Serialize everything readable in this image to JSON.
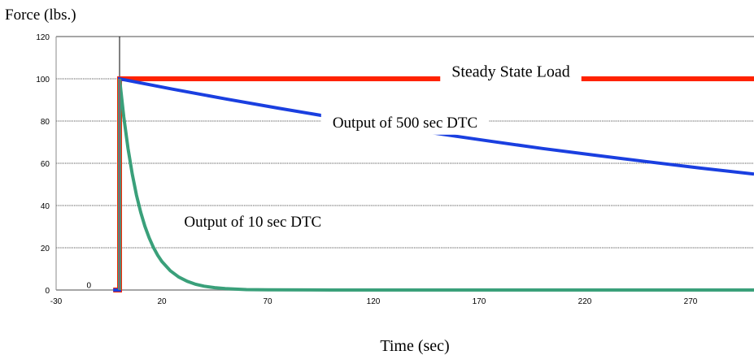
{
  "chart_data": {
    "type": "line",
    "ylabel": "Force (lbs.)",
    "xlabel": "Time (sec)",
    "xlim": [
      -30,
      300
    ],
    "ylim": [
      0,
      120
    ],
    "xticks": [
      -30,
      20,
      70,
      120,
      170,
      220,
      270
    ],
    "yticks": [
      0,
      20,
      40,
      60,
      80,
      100,
      120
    ],
    "grid": true,
    "series": [
      {
        "name": "Steady State Load",
        "color": "#ff2200",
        "x": [
          -3,
          0,
          0,
          300
        ],
        "y": [
          0,
          0,
          100,
          100
        ]
      },
      {
        "name": "Output of 500 sec DTC",
        "color": "#1a3fe0",
        "x": [
          -3,
          0,
          0,
          25,
          50,
          75,
          100,
          125,
          150,
          175,
          200,
          225,
          250,
          275,
          300
        ],
        "y": [
          0,
          0,
          100,
          95.1,
          90.5,
          86.1,
          81.9,
          77.9,
          74.1,
          70.5,
          67.0,
          63.8,
          60.7,
          57.7,
          54.9
        ]
      },
      {
        "name": "Output of 10 sec DTC",
        "color": "#3aa07a",
        "x": [
          0,
          0,
          2,
          4,
          6,
          8,
          10,
          12,
          14,
          16,
          18,
          20,
          24,
          28,
          32,
          36,
          40,
          45,
          50,
          60,
          70,
          100,
          150,
          200,
          250,
          300
        ],
        "y": [
          0,
          100,
          81.9,
          67.0,
          54.9,
          44.9,
          36.8,
          30.1,
          24.7,
          20.2,
          16.5,
          13.5,
          9.1,
          6.1,
          4.1,
          2.7,
          1.8,
          1.1,
          0.7,
          0.2,
          0.1,
          0,
          0,
          0,
          0,
          0
        ]
      }
    ],
    "annotations": [
      {
        "text": "Steady State Load",
        "x": 185,
        "y": 101
      },
      {
        "text": "Output of 500 sec DTC",
        "x": 135,
        "y": 77
      },
      {
        "text": "Output of 10 sec DTC",
        "x": 63,
        "y": 30
      },
      {
        "text": "0",
        "x": -14.5,
        "y": 1
      }
    ]
  }
}
